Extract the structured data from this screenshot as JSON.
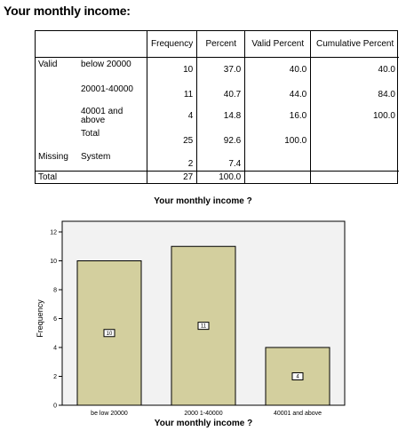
{
  "heading": "Your monthly income:",
  "table": {
    "columns": [
      "Frequency",
      "Percent",
      "Valid Percent",
      "Cumulative Percent"
    ],
    "rows": [
      {
        "group": "Valid",
        "label": "below 20000",
        "frequency": "10",
        "percent": "37.0",
        "valid_percent": "40.0",
        "cumulative_percent": "40.0"
      },
      {
        "group": "",
        "label": "20001-40000",
        "frequency": "11",
        "percent": "40.7",
        "valid_percent": "44.0",
        "cumulative_percent": "84.0"
      },
      {
        "group": "",
        "label": "40001 and above",
        "frequency": "4",
        "percent": "14.8",
        "valid_percent": "16.0",
        "cumulative_percent": "100.0"
      },
      {
        "group": "",
        "label": "Total",
        "frequency": "25",
        "percent": "92.6",
        "valid_percent": "100.0",
        "cumulative_percent": ""
      },
      {
        "group": "Missing",
        "label": "System",
        "frequency": "2",
        "percent": "7.4",
        "valid_percent": "",
        "cumulative_percent": ""
      },
      {
        "group": "Total",
        "label": "",
        "frequency": "27",
        "percent": "100.0",
        "valid_percent": "",
        "cumulative_percent": ""
      }
    ]
  },
  "chart_data": {
    "type": "bar",
    "title": "Your monthly income ?",
    "xlabel": "Your monthly income ?",
    "ylabel": "Frequency",
    "categories": [
      "be low 20000",
      "2000 1-40000",
      "40001 and above"
    ],
    "values": [
      10,
      11,
      4
    ],
    "data_labels": [
      "10",
      "11",
      "4"
    ],
    "ylim": [
      0,
      12
    ],
    "yticks": [
      "0",
      "2",
      "4",
      "6",
      "8",
      "10",
      "12"
    ],
    "bar_color": "#d3cf9e",
    "plot_bg": "#f2f2f2",
    "grid": false
  }
}
